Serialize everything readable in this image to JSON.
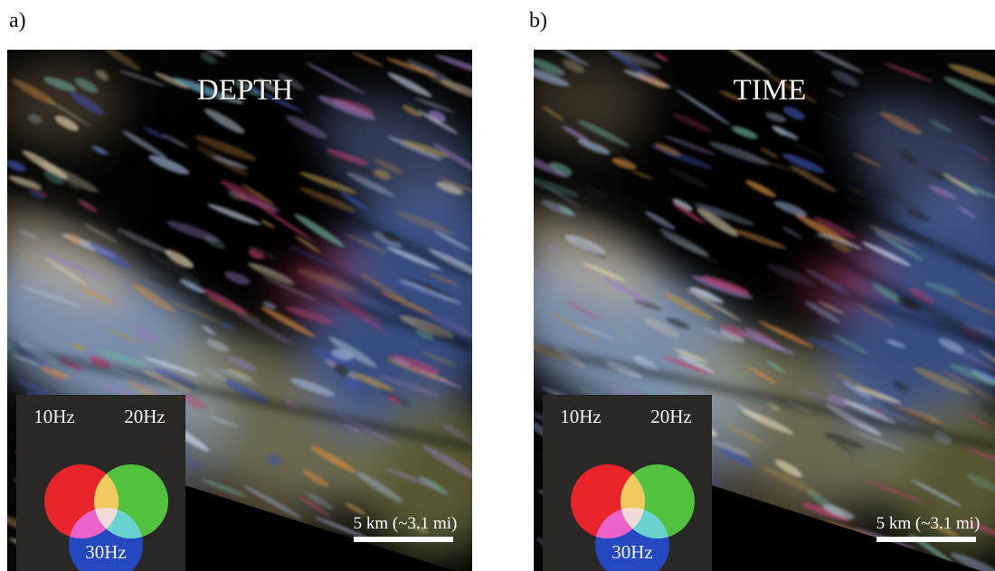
{
  "panels": [
    {
      "label": "a)",
      "title": "DEPTH",
      "legend": {
        "labels": [
          "10Hz",
          "20Hz",
          "30Hz"
        ]
      },
      "scale_bar": "5 km (~3.1 mi)"
    },
    {
      "label": "b)",
      "title": "TIME",
      "legend": {
        "labels": [
          "10Hz",
          "20Hz",
          "30Hz"
        ]
      },
      "scale_bar": "5 km (~3.1 mi)"
    }
  ]
}
